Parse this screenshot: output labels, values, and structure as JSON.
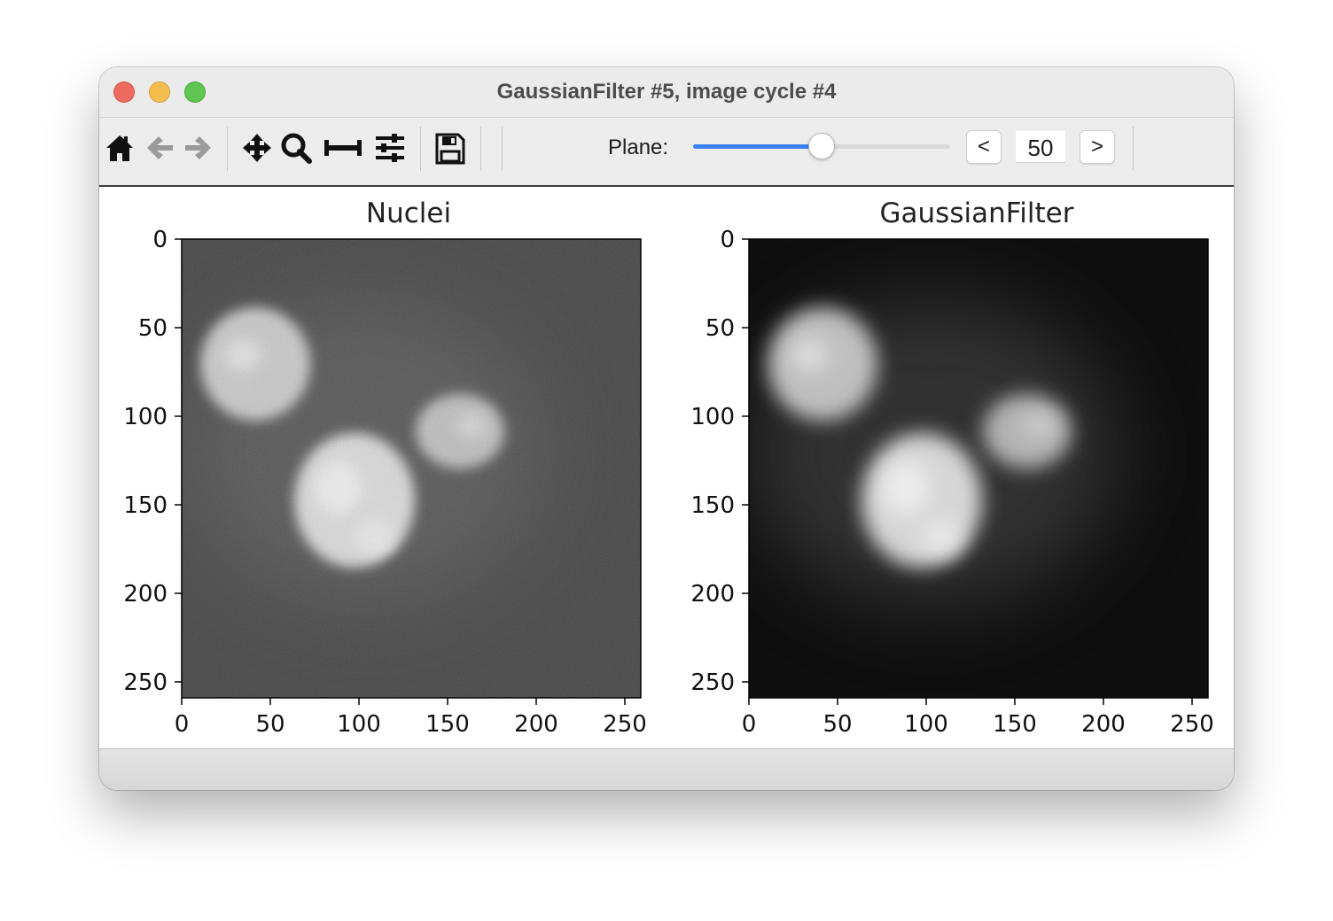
{
  "window": {
    "title": "GaussianFilter #5, image cycle #4"
  },
  "toolbar": {
    "icons": [
      "home-icon",
      "back-icon",
      "forward-icon",
      "pan-icon",
      "zoom-icon",
      "subplots-icon",
      "configure-icon",
      "save-icon"
    ],
    "plane_label": "Plane:",
    "plane_value": "50",
    "plane_fraction": 0.5,
    "prev_label": "<",
    "next_label": ">",
    "accent_color": "#3b82f6"
  },
  "plots": [
    {
      "title": "Nuclei",
      "x_ticks": [
        "0",
        "50",
        "100",
        "150",
        "200",
        "250"
      ],
      "y_ticks": [
        "0",
        "50",
        "100",
        "150",
        "200",
        "250"
      ],
      "colormap": "gray",
      "background_level": 0.2
    },
    {
      "title": "GaussianFilter",
      "x_ticks": [
        "0",
        "50",
        "100",
        "150",
        "200",
        "250"
      ],
      "y_ticks": [
        "0",
        "50",
        "100",
        "150",
        "200",
        "250"
      ],
      "colormap": "gray",
      "background_level": 0.06
    }
  ]
}
